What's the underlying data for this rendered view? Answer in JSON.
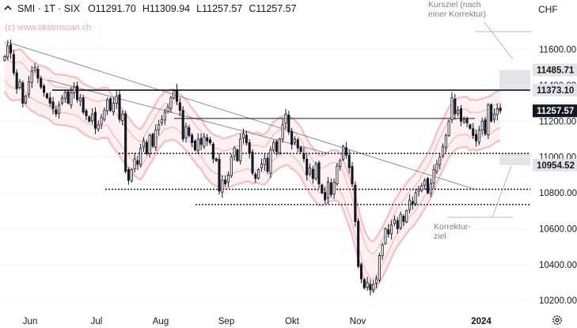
{
  "header": {
    "symbol": "SMI · 1T · SIX",
    "open": "O11291.70",
    "high": "H11309.94",
    "low": "L11257.57",
    "close": "C11257.57"
  },
  "watermark": "(c) www.aktienscan.ch",
  "currency": "CHF",
  "annotations": {
    "target_line1": "Kursziel (nach",
    "target_line2": "einer Korrektur)",
    "correction_line1": "Korrektur-",
    "correction_line2": "ziel"
  },
  "colors": {
    "up": "#ffffff",
    "down": "#131722",
    "envelope": "#f6b7bd",
    "target_zone": "#d9dbe0"
  },
  "chart_data": {
    "type": "candlestick",
    "x_labels": [
      "Jun",
      "Jul",
      "Aug",
      "Sep",
      "Okt",
      "Nov",
      "2024"
    ],
    "y_ticks": [
      10200,
      10400,
      10600,
      10800,
      11000,
      11200,
      11400,
      11600
    ],
    "y_range": [
      10130,
      11770
    ],
    "price_labels": [
      {
        "value": 11485.71,
        "text": "11485.71",
        "style": "zone"
      },
      {
        "value": 11373.1,
        "text": "11373.10",
        "style": "zone"
      },
      {
        "value": 11257.57,
        "text": "11257.57",
        "style": "last"
      },
      {
        "value": 10954.52,
        "text": "10954.52",
        "style": "zone"
      }
    ],
    "horizontal_levels": [
      {
        "value": 11373,
        "style": "solid-thick"
      },
      {
        "value": 11215,
        "style": "solid-thin"
      },
      {
        "value": 11020,
        "style": "dotted"
      },
      {
        "value": 10820,
        "style": "dotted"
      },
      {
        "value": 10735,
        "style": "dotted"
      }
    ],
    "target_zones": [
      [
        11373.1,
        11485.71
      ],
      [
        10954.52,
        11020
      ]
    ],
    "candles_close": [
      11560,
      11620,
      11580,
      11470,
      11380,
      11420,
      11300,
      11340,
      11420,
      11480,
      11500,
      11440,
      11390,
      11360,
      11330,
      11300,
      11270,
      11240,
      11290,
      11330,
      11360,
      11300,
      11360,
      11390,
      11320,
      11330,
      11250,
      11230,
      11200,
      11240,
      11160,
      11180,
      11220,
      11260,
      11320,
      11260,
      11300,
      11340,
      11210,
      11240,
      10920,
      10870,
      10930,
      10990,
      10960,
      11050,
      11090,
      11020,
      11120,
      11060,
      11150,
      11180,
      11210,
      11250,
      11280,
      11330,
      11370,
      11310,
      11260,
      11100,
      11170,
      11120,
      11080,
      11040,
      11100,
      11070,
      11110,
      11090,
      11080,
      10990,
      10980,
      10810,
      10870,
      10850,
      10900,
      11000,
      11050,
      10980,
      11100,
      11130,
      11080,
      11020,
      10910,
      10880,
      10930,
      10960,
      10990,
      10920,
      11040,
      11080,
      11030,
      11100,
      11180,
      11240,
      11140,
      11070,
      11100,
      11050,
      11030,
      10990,
      10900,
      10940,
      10880,
      10960,
      10850,
      10800,
      10760,
      10860,
      10790,
      10860,
      10950,
      10980,
      11060,
      11010,
      10940,
      10850,
      10640,
      10390,
      10320,
      10270,
      10300,
      10260,
      10290,
      10320,
      10450,
      10510,
      10600,
      10570,
      10620,
      10650,
      10600,
      10680,
      10640,
      10700,
      10760,
      10740,
      10800,
      10820,
      10840,
      10870,
      10800,
      10850,
      10930,
      10960,
      11000,
      11060,
      11120,
      11200,
      11330,
      11240,
      11260,
      11200,
      11210,
      11190,
      11160,
      11120,
      11090,
      11150,
      11200,
      11130,
      11290,
      11200,
      11240,
      11270,
      11257.57
    ]
  }
}
